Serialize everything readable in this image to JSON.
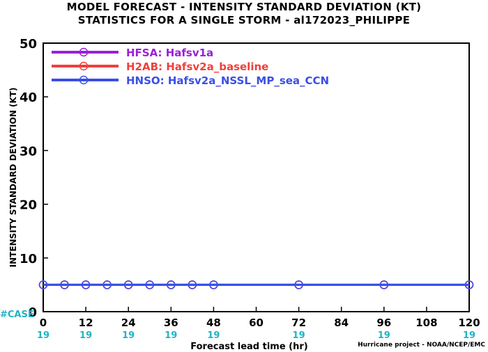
{
  "chart_data": {
    "type": "line",
    "title": "MODEL FORECAST - INTENSITY STANDARD DEVIATION (KT)",
    "subtitle": "STATISTICS FOR A SINGLE STORM - al172023_PHILIPPE",
    "xlabel": "Forecast lead time (hr)",
    "ylabel": "INTENSITY STANDARD DEVIATION (KT)",
    "xlim": [
      0,
      120
    ],
    "ylim": [
      0,
      50
    ],
    "x_ticks": [
      0,
      12,
      24,
      36,
      48,
      60,
      72,
      84,
      96,
      108,
      120
    ],
    "y_ticks": [
      0,
      10,
      20,
      30,
      40,
      50
    ],
    "grid": false,
    "legend_position": "top-left",
    "case_label": "#CASE",
    "case_counts": [
      "19",
      "19",
      "19",
      "19",
      "19",
      "",
      "19",
      "",
      "19",
      "",
      "19"
    ],
    "series": [
      {
        "name": "HFSA: Hafsv1a",
        "color": "#9c1fd6",
        "x": [
          0,
          6,
          12,
          18,
          24,
          30,
          36,
          42,
          48,
          72,
          96,
          120
        ],
        "y": [
          5,
          5,
          5,
          5,
          5,
          5,
          5,
          5,
          5,
          5,
          5,
          5
        ]
      },
      {
        "name": "H2AB: Hafsv2a_baseline",
        "color": "#f0403c",
        "x": [
          0,
          6,
          12,
          18,
          24,
          30,
          36,
          42,
          48,
          72,
          96,
          120
        ],
        "y": [
          5,
          5,
          5,
          5,
          5,
          5,
          5,
          5,
          5,
          5,
          5,
          5
        ]
      },
      {
        "name": "HNSO: Hafsv2a_NSSL_MP_sea_CCN",
        "color": "#3a4fe6",
        "x": [
          0,
          6,
          12,
          18,
          24,
          30,
          36,
          42,
          48,
          72,
          96,
          120
        ],
        "y": [
          5,
          5,
          5,
          5,
          5,
          5,
          5,
          5,
          5,
          5,
          5,
          5
        ]
      }
    ],
    "credit": "Hurricane project - NOAA/NCEP/EMC"
  },
  "colors": {
    "case_text": "#1fb4c6",
    "axis": "#000000"
  }
}
